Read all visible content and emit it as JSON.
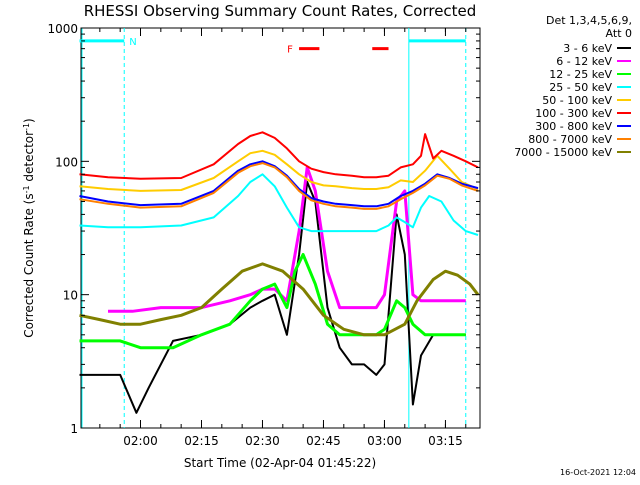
{
  "chart_data": {
    "type": "line",
    "title": "RHESSI Observing Summary Count Rates, Corrected",
    "xlabel": "Start Time (02-Apr-04 01:45:22)",
    "ylabel_parts": [
      "Corrected Count Rate (s",
      "-1",
      " detector",
      "-1",
      ")"
    ],
    "yscale": "log",
    "ylim": [
      1,
      1000
    ],
    "xlim": [
      "01:45:22",
      "03:23:30"
    ],
    "x_ticks": [
      "02:00",
      "02:15",
      "02:30",
      "02:45",
      "03:00",
      "03:15"
    ],
    "y_ticks": [
      "1",
      "10",
      "100",
      "1000"
    ],
    "legend_header": [
      "Det 1,3,4,5,6,9,",
      "Att 0"
    ],
    "series": [
      {
        "name": "3 - 6 keV",
        "color": "#000000",
        "x": [
          "01:45",
          "01:55",
          "01:59",
          "02:02",
          "02:08",
          "02:15",
          "02:22",
          "02:27",
          "02:30",
          "02:33",
          "02:36",
          "02:39",
          "02:41",
          "02:43",
          "02:46",
          "02:49",
          "02:52",
          "02:55",
          "02:58",
          "03:00",
          "03:03",
          "03:05",
          "03:07",
          "03:09",
          "03:12",
          "03:15",
          "03:20"
        ],
        "y": [
          2.5,
          2.5,
          1.3,
          2,
          4.5,
          5,
          6,
          8,
          9,
          10,
          5,
          20,
          70,
          50,
          8,
          4,
          3,
          3,
          2.5,
          3,
          40,
          20,
          1.5,
          3.5,
          5,
          5,
          5
        ]
      },
      {
        "name": "6 - 12 keV",
        "color": "#ff00ff",
        "x": [
          "01:52",
          "01:58",
          "02:05",
          "02:15",
          "02:22",
          "02:27",
          "02:30",
          "02:33",
          "02:36",
          "02:39",
          "02:41",
          "02:43",
          "02:46",
          "02:49",
          "02:52",
          "02:55",
          "02:58",
          "03:00",
          "03:03",
          "03:05",
          "03:07",
          "03:09",
          "03:12",
          "03:15",
          "03:20"
        ],
        "y": [
          7.5,
          7.5,
          8,
          8,
          9,
          10,
          11,
          11,
          9,
          30,
          90,
          60,
          15,
          8,
          8,
          8,
          8,
          10,
          50,
          60,
          10,
          9,
          9,
          9,
          9
        ]
      },
      {
        "name": "12 - 25 keV",
        "color": "#00ff00",
        "x": [
          "01:45",
          "01:55",
          "02:00",
          "02:08",
          "02:15",
          "02:22",
          "02:27",
          "02:30",
          "02:33",
          "02:36",
          "02:38",
          "02:40",
          "02:43",
          "02:46",
          "02:49",
          "02:52",
          "02:55",
          "02:58",
          "03:00",
          "03:03",
          "03:05",
          "03:07",
          "03:10",
          "03:15",
          "03:20"
        ],
        "y": [
          4.5,
          4.5,
          4,
          4,
          5,
          6,
          9,
          11,
          12,
          8,
          15,
          20,
          12,
          6,
          5,
          5,
          5,
          5,
          5.5,
          9,
          8,
          6,
          5,
          5,
          5
        ]
      },
      {
        "name": "25 - 50 keV",
        "color": "#00ffff",
        "x": [
          "01:45",
          "01:52",
          "02:00",
          "02:10",
          "02:18",
          "02:24",
          "02:27",
          "02:30",
          "02:33",
          "02:36",
          "02:39",
          "02:42",
          "02:45",
          "02:48",
          "02:52",
          "02:55",
          "02:58",
          "03:01",
          "03:03",
          "03:05",
          "03:07",
          "03:09",
          "03:11",
          "03:14",
          "03:17",
          "03:20",
          "03:23"
        ],
        "y": [
          33,
          32,
          32,
          33,
          38,
          55,
          70,
          80,
          65,
          45,
          32,
          30,
          30,
          30,
          30,
          30,
          30,
          33,
          38,
          35,
          32,
          45,
          55,
          50,
          36,
          30,
          28
        ]
      },
      {
        "name": "50 - 100 keV",
        "color": "#ffcc00",
        "x": [
          "01:45",
          "01:52",
          "02:00",
          "02:10",
          "02:18",
          "02:24",
          "02:27",
          "02:30",
          "02:33",
          "02:36",
          "02:39",
          "02:42",
          "02:45",
          "02:48",
          "02:52",
          "02:55",
          "02:58",
          "03:01",
          "03:04",
          "03:07",
          "03:10",
          "03:13",
          "03:16",
          "03:19",
          "03:23"
        ],
        "y": [
          65,
          62,
          60,
          61,
          75,
          100,
          115,
          120,
          112,
          95,
          80,
          70,
          66,
          65,
          63,
          62,
          62,
          64,
          72,
          70,
          85,
          110,
          88,
          70,
          62
        ]
      },
      {
        "name": "100 - 300 keV",
        "color": "#ff0000",
        "x": [
          "01:45",
          "01:52",
          "02:00",
          "02:10",
          "02:18",
          "02:24",
          "02:27",
          "02:30",
          "02:33",
          "02:36",
          "02:39",
          "02:42",
          "02:45",
          "02:48",
          "02:52",
          "02:55",
          "02:58",
          "03:01",
          "03:04",
          "03:07",
          "03:09",
          "03:10",
          "03:12",
          "03:14",
          "03:17",
          "03:20",
          "03:23"
        ],
        "y": [
          80,
          76,
          74,
          75,
          95,
          135,
          155,
          165,
          150,
          125,
          100,
          88,
          83,
          80,
          78,
          76,
          76,
          78,
          90,
          95,
          110,
          160,
          105,
          120,
          110,
          100,
          90
        ]
      },
      {
        "name": "300 - 800 keV",
        "color": "#0000ff",
        "x": [
          "01:45",
          "01:52",
          "02:00",
          "02:10",
          "02:18",
          "02:24",
          "02:27",
          "02:30",
          "02:33",
          "02:36",
          "02:39",
          "02:42",
          "02:45",
          "02:48",
          "02:52",
          "02:55",
          "02:58",
          "03:01",
          "03:04",
          "03:07",
          "03:10",
          "03:13",
          "03:16",
          "03:19",
          "03:23"
        ],
        "y": [
          55,
          50,
          47,
          48,
          60,
          85,
          95,
          100,
          92,
          78,
          62,
          53,
          50,
          48,
          47,
          46,
          46,
          48,
          55,
          60,
          68,
          80,
          75,
          68,
          63
        ]
      },
      {
        "name": "800 - 7000 keV",
        "color": "#ff8000",
        "x": [
          "01:45",
          "01:52",
          "02:00",
          "02:10",
          "02:18",
          "02:24",
          "02:27",
          "02:30",
          "02:33",
          "02:36",
          "02:39",
          "02:42",
          "02:45",
          "02:48",
          "02:52",
          "02:55",
          "02:58",
          "03:01",
          "03:04",
          "03:07",
          "03:10",
          "03:13",
          "03:16",
          "03:19",
          "03:23"
        ],
        "y": [
          52,
          48,
          45,
          46,
          58,
          82,
          92,
          97,
          90,
          76,
          60,
          51,
          48,
          46,
          45,
          44,
          44,
          46,
          52,
          58,
          66,
          78,
          74,
          66,
          60
        ]
      },
      {
        "name": "7000 - 15000 keV",
        "color": "#808000",
        "x": [
          "01:45",
          "01:50",
          "01:55",
          "02:00",
          "02:05",
          "02:10",
          "02:15",
          "02:20",
          "02:25",
          "02:30",
          "02:35",
          "02:40",
          "02:45",
          "02:50",
          "02:55",
          "03:00",
          "03:05",
          "03:08",
          "03:12",
          "03:15",
          "03:18",
          "03:21",
          "03:23"
        ],
        "y": [
          7,
          6.5,
          6,
          6,
          6.5,
          7,
          8,
          11,
          15,
          17,
          15,
          11,
          7,
          5.5,
          5,
          5,
          6,
          9,
          13,
          15,
          14,
          12,
          10
        ]
      }
    ],
    "annotations": [
      {
        "label": "N",
        "color": "#00ffff",
        "x_start": "01:45",
        "x_end": "01:56",
        "level": 800
      },
      {
        "label": "",
        "color": "#00ffff",
        "x_start": "03:06",
        "x_end": "03:20",
        "level": 800
      },
      {
        "label": "F",
        "color": "#ff0000",
        "x_start": "02:39",
        "x_end": "02:44",
        "level": 700
      },
      {
        "label": "",
        "color": "#ff0000",
        "x_start": "02:57",
        "x_end": "03:01",
        "level": 700
      }
    ],
    "vertical_markers": [
      {
        "x": "01:56",
        "style": "dashed",
        "color": "#00ffff"
      },
      {
        "x": "03:06",
        "style": "solid",
        "color": "#00ffff"
      },
      {
        "x": "03:20",
        "style": "dashed",
        "color": "#00ffff"
      }
    ],
    "grid": false,
    "legend_position": "right"
  },
  "footer": {
    "timestamp": "16-Oct-2021 12:04"
  }
}
